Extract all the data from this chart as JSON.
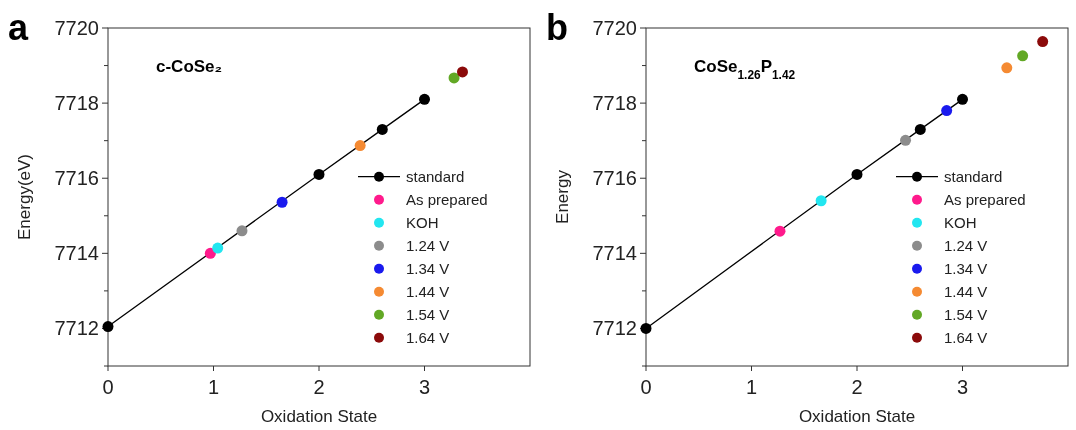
{
  "chart_data": [
    {
      "type": "scatter",
      "title": "c-CoSe₂",
      "annotations": [
        "a"
      ],
      "xlabel": "Oxidation State",
      "ylabel": "Energy(eV)",
      "xlim": [
        0,
        4
      ],
      "xticks": [
        0,
        1,
        2,
        3
      ],
      "ylim": [
        7711,
        7720
      ],
      "yticks": [
        {
          "value": 7711,
          "label": null
        },
        7712,
        {
          "value": 7713,
          "label": null
        },
        7714,
        {
          "value": 7715,
          "label": null
        },
        7716,
        {
          "value": 7717,
          "label": null
        },
        7718,
        {
          "value": 7719,
          "label": null
        },
        7720
      ],
      "legend": "right",
      "marker": "circle",
      "grid": false,
      "series": [
        {
          "name": "standard",
          "type": "line",
          "color": "#000000",
          "x": [
            0,
            2,
            2.6,
            3
          ],
          "values": [
            7712.05,
            7716.1,
            7717.3,
            7718.1
          ]
        },
        {
          "name": "As prepared",
          "color": "#ff1a8c",
          "x": [
            0.97
          ],
          "values": [
            7714.0
          ]
        },
        {
          "name": "KOH",
          "color": "#22e6f0",
          "x": [
            1.04
          ],
          "values": [
            7714.14
          ]
        },
        {
          "name": "1.24 V",
          "color": "#8c8c8c",
          "x": [
            1.27
          ],
          "values": [
            7714.6
          ]
        },
        {
          "name": "1.34 V",
          "color": "#1a1aee",
          "x": [
            1.65
          ],
          "values": [
            7715.36
          ]
        },
        {
          "name": "1.44 V",
          "color": "#f58a32",
          "x": [
            2.39
          ],
          "values": [
            7716.87
          ]
        },
        {
          "name": "1.54 V",
          "color": "#62a825",
          "x": [
            3.28
          ],
          "values": [
            7718.67
          ]
        },
        {
          "name": "1.64 V",
          "color": "#8b0a0a",
          "x": [
            3.36
          ],
          "values": [
            7718.83
          ]
        }
      ]
    },
    {
      "type": "scatter",
      "title": "CoSe$_{1.26}$P$_{1.42}$",
      "annotations": [
        "b"
      ],
      "xlabel": "Oxidation State",
      "ylabel": "Energy",
      "xlim": [
        0,
        4
      ],
      "xticks": [
        0,
        1,
        2,
        3
      ],
      "ylim": [
        7711,
        7720
      ],
      "yticks": [
        {
          "value": 7711,
          "label": null
        },
        7712,
        {
          "value": 7713,
          "label": null
        },
        7714,
        {
          "value": 7715,
          "label": null
        },
        7716,
        {
          "value": 7717,
          "label": null
        },
        7718,
        {
          "value": 7719,
          "label": null
        },
        7720
      ],
      "legend": "right",
      "marker": "circle",
      "grid": false,
      "series": [
        {
          "name": "standard",
          "type": "line",
          "color": "#000000",
          "x": [
            0,
            2,
            2.6,
            3
          ],
          "values": [
            7712.0,
            7716.1,
            7717.3,
            7718.1
          ]
        },
        {
          "name": "As prepared",
          "color": "#ff1a8c",
          "x": [
            1.27
          ],
          "values": [
            7714.59
          ]
        },
        {
          "name": "KOH",
          "color": "#22e6f0",
          "x": [
            1.66
          ],
          "values": [
            7715.4
          ]
        },
        {
          "name": "1.24 V",
          "color": "#8c8c8c",
          "x": [
            2.46
          ],
          "values": [
            7717.01
          ]
        },
        {
          "name": "1.34 V",
          "color": "#1a1aee",
          "x": [
            2.85
          ],
          "values": [
            7717.8
          ]
        },
        {
          "name": "1.44 V",
          "color": "#f58a32",
          "x": [
            3.42
          ],
          "values": [
            7718.94
          ]
        },
        {
          "name": "1.54 V",
          "color": "#62a825",
          "x": [
            3.57
          ],
          "values": [
            7719.26
          ]
        },
        {
          "name": "1.64 V",
          "color": "#8b0a0a",
          "x": [
            3.76
          ],
          "values": [
            7719.64
          ]
        }
      ]
    }
  ]
}
